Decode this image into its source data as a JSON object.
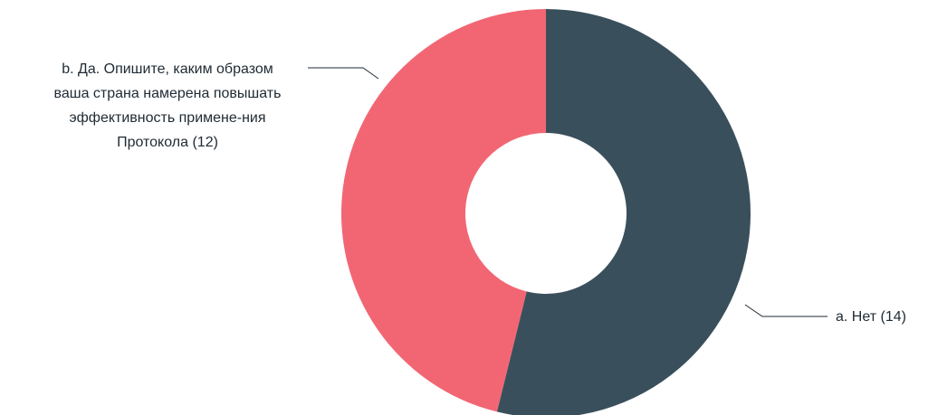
{
  "chart_data": {
    "type": "pie",
    "donut": true,
    "title": "",
    "total": 26,
    "slices": [
      {
        "key": "a",
        "value": 14,
        "color": "#3a4f5c",
        "label_lines": [
          "a. Нет (14)"
        ]
      },
      {
        "key": "b",
        "value": 12,
        "color": "#f26674",
        "label_lines": [
          "b. Да. Опишите, каким образом",
          "ваша страна намерена повышать",
          "эффективность примене-ния",
          "Протокола (12)"
        ]
      }
    ],
    "legend": "none",
    "leader_line_color": "#1f2a33"
  }
}
